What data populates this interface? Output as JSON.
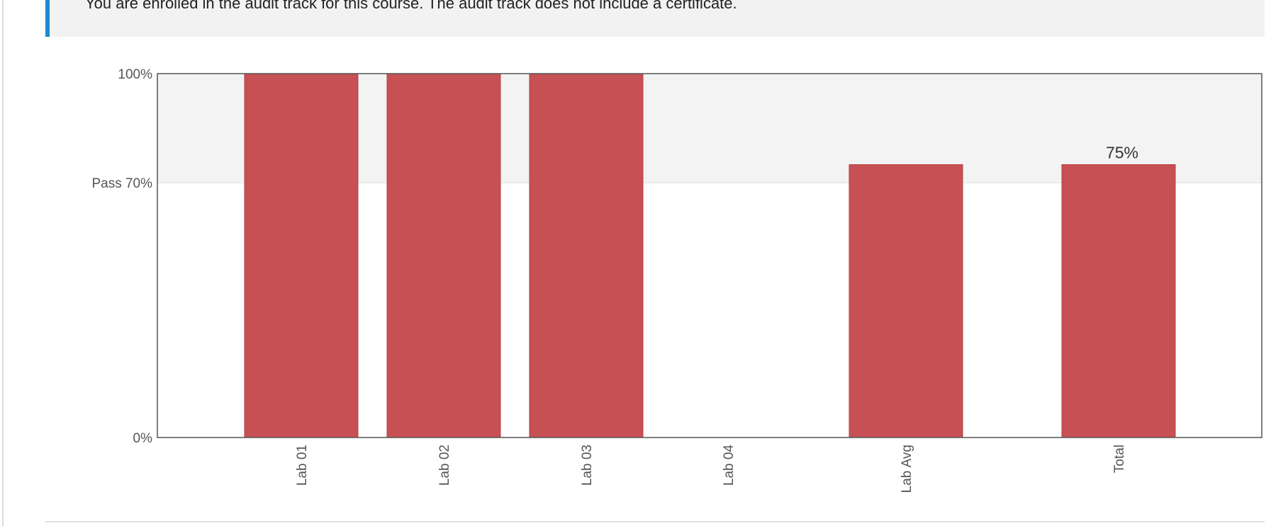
{
  "notice": {
    "text": "You are enrolled in the audit track for this course. The audit track does not include a certificate."
  },
  "colors": {
    "bar": "#c44a4d",
    "bar_stroke": "#b83e42",
    "pass_zone": "#f3f3f3",
    "axis": "#555555",
    "notice_accent": "#1f8ad1"
  },
  "chart_data": {
    "type": "bar",
    "title": "",
    "xlabel": "",
    "ylabel": "",
    "ylim": [
      0,
      100
    ],
    "categories": [
      "Lab 01",
      "Lab 02",
      "Lab 03",
      "Lab 04",
      "Lab Avg",
      "Total"
    ],
    "values": [
      100,
      100,
      100,
      0,
      75,
      75
    ],
    "y_ticks": [
      {
        "value": 100,
        "label": "100%"
      },
      {
        "value": 70,
        "label": "Pass 70%"
      },
      {
        "value": 0,
        "label": "0%"
      }
    ],
    "pass_threshold": 70,
    "data_labels": [
      {
        "category": "Total",
        "value": 75,
        "label": "75%"
      }
    ],
    "grid": false,
    "legend": "none"
  }
}
